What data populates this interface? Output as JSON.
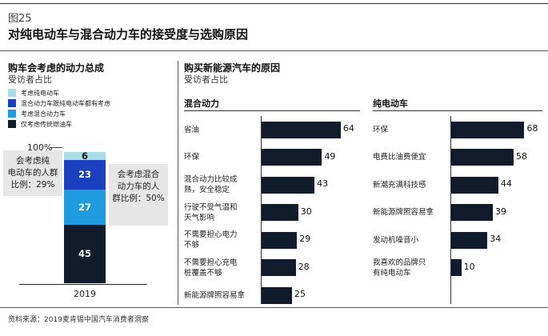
{
  "figure": {
    "number": "图25",
    "title": "对纯电动车与混合动力车的接受度与选购原因",
    "source": "资料来源：2019麦肯锡中国汽车消费者洞察"
  },
  "chart_data": [
    {
      "type": "bar",
      "stacked": true,
      "title": "购车会考虑的动力总成",
      "subtitle": "受访者占比",
      "categories": [
        "2019"
      ],
      "total_label": "100%",
      "series": [
        {
          "name": "仅考虑传统燃油车",
          "values": [
            45
          ],
          "color": "#101b2c"
        },
        {
          "name": "考虑混合动力车",
          "values": [
            27
          ],
          "color": "#1f9be0"
        },
        {
          "name": "混合动力车跟纯电动车都有考虑",
          "values": [
            23
          ],
          "color": "#1a3fbf"
        },
        {
          "name": "考虑纯电动车",
          "values": [
            6
          ],
          "color": "#a8dde6"
        }
      ],
      "callouts": [
        {
          "text": "会考虑纯电动车的人群比例：29%",
          "lines": [
            "会考虑纯",
            "电动车的人群",
            "比例：29%"
          ]
        },
        {
          "text": "会考虑混合动力车的人群比例：50%",
          "lines": [
            "会考虑混合",
            "动力车的人",
            "群比例：50%"
          ]
        }
      ],
      "xlabel": "2019"
    },
    {
      "type": "bar",
      "orientation": "horizontal",
      "title": "购买新能源汽车的原因",
      "subtitle": "受访者占比",
      "group": "混合动力",
      "categories": [
        "省油",
        "环保",
        "混合动力比较成熟，安全稳定",
        "行驶不受气温和天气影响",
        "不需要担心电力不够",
        "不需要担心充电桩覆盖不够",
        "新能源牌照容易拿"
      ],
      "category_lines": [
        [
          "省油"
        ],
        [
          "环保"
        ],
        [
          "混合动力比较成",
          "熟，安全稳定"
        ],
        [
          "行驶不受气温和",
          "天气影响"
        ],
        [
          "不需要担心电力",
          "不够"
        ],
        [
          "不需要担心充电",
          "桩覆盖不够"
        ],
        [
          "新能源牌照容易拿"
        ]
      ],
      "values": [
        64,
        49,
        43,
        30,
        29,
        28,
        25
      ],
      "color": "#101b2c"
    },
    {
      "type": "bar",
      "orientation": "horizontal",
      "group": "纯电动车",
      "categories": [
        "环保",
        "电费比油费便宜",
        "新潮充满科技感",
        "新能源牌照容易拿",
        "发动机噪音小",
        "我喜欢的品牌只有纯电动车"
      ],
      "category_lines": [
        [
          "环保"
        ],
        [
          "电费比油费便宜"
        ],
        [
          "新潮充满科技感"
        ],
        [
          "新能源牌照容易拿"
        ],
        [
          "发动机噪音小"
        ],
        [
          "我喜欢的品牌只",
          "有纯电动车"
        ]
      ],
      "values": [
        68,
        58,
        44,
        39,
        34,
        10
      ],
      "color": "#101b2c"
    }
  ]
}
